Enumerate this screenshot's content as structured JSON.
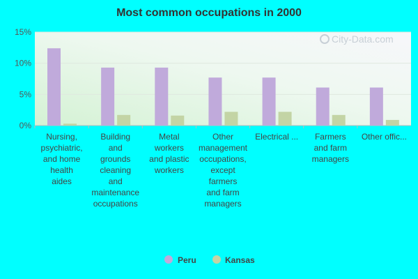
{
  "chart_data": {
    "type": "bar",
    "title": "Most common occupations in 2000",
    "xlabel": "",
    "ylabel": "",
    "ylim": [
      0,
      15
    ],
    "yticks": [
      "0%",
      "5%",
      "10%",
      "15%"
    ],
    "ytick_values": [
      0,
      5,
      10,
      15
    ],
    "categories": [
      [
        "Nursing,",
        "psychiatric,",
        "and home",
        "health",
        "aides"
      ],
      [
        "Building",
        "and",
        "grounds",
        "cleaning",
        "and",
        "maintenance",
        "occupations"
      ],
      [
        "Metal",
        "workers",
        "and plastic",
        "workers"
      ],
      [
        "Other",
        "management",
        "occupations,",
        "except",
        "farmers",
        "and farm",
        "managers"
      ],
      [
        "Electrical ..."
      ],
      [
        "Farmers",
        "and farm",
        "managers"
      ],
      [
        "Other offic..."
      ]
    ],
    "series": [
      {
        "name": "Peru",
        "values": [
          12.4,
          9.3,
          9.3,
          7.7,
          7.7,
          6.1,
          6.1
        ]
      },
      {
        "name": "Kansas",
        "values": [
          0.3,
          1.7,
          1.6,
          2.2,
          2.2,
          1.7,
          0.9
        ]
      }
    ],
    "legend_position": "bottom",
    "grid": true
  },
  "colors": {
    "peru": "#c0aadb",
    "kansas": "#c3d4a5",
    "background": "#00ffff"
  },
  "watermark": "City-Data.com"
}
